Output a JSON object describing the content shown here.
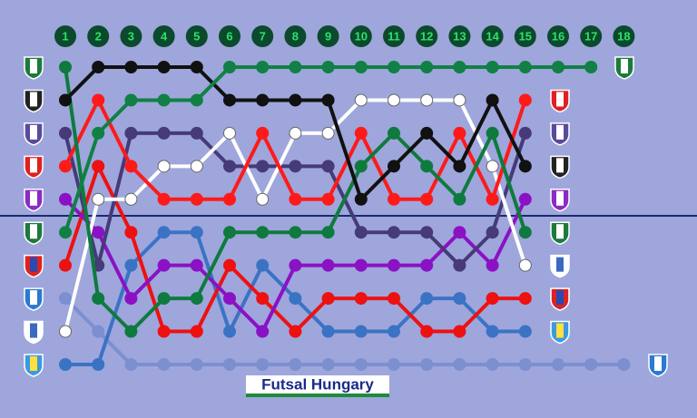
{
  "chart_data": {
    "type": "line",
    "x": [
      1,
      2,
      3,
      4,
      5,
      6,
      7,
      8,
      9,
      10,
      11,
      12,
      13,
      14,
      15,
      16,
      17,
      18
    ],
    "ylim": [
      1,
      10
    ],
    "y_inverted": true,
    "divider": 5.5,
    "logo": "Futsal Hungary",
    "series": [
      {
        "color": "#7c8fd0",
        "marker_fill": "#7c8fd0",
        "values": [
          8,
          9,
          10,
          10,
          10,
          10,
          10,
          10,
          10,
          10,
          10,
          10,
          10,
          10,
          10,
          10,
          10,
          10
        ]
      },
      {
        "color": "#3b73c4",
        "marker_fill": "#3b73c4",
        "values": [
          10,
          10,
          7,
          6,
          6,
          9,
          7,
          8,
          9,
          9,
          9,
          8,
          8,
          9,
          9,
          null,
          null,
          null
        ]
      },
      {
        "color": "#ee1111",
        "marker_fill": "#ee1111",
        "values": [
          7,
          4,
          6,
          9,
          9,
          7,
          8,
          9,
          8,
          8,
          8,
          9,
          9,
          8,
          8,
          null,
          null,
          null
        ]
      },
      {
        "color": "#8a12c4",
        "marker_fill": "#8a12c4",
        "values": [
          5,
          6,
          8,
          7,
          7,
          8,
          9,
          7,
          7,
          7,
          7,
          7,
          6,
          7,
          5,
          null,
          null,
          null
        ]
      },
      {
        "color": "#463a78",
        "marker_fill": "#463a78",
        "values": [
          3,
          7,
          3,
          3,
          3,
          4,
          4,
          4,
          4,
          6,
          6,
          6,
          7,
          6,
          3,
          null,
          null,
          null
        ]
      },
      {
        "color": "#ffffff",
        "marker_fill": "#ffffff",
        "values": [
          9,
          5,
          5,
          4,
          4,
          3,
          5,
          3,
          3,
          2,
          2,
          2,
          2,
          4,
          7,
          null,
          null,
          null
        ]
      },
      {
        "color": "#ff1a1a",
        "marker_fill": "#ff1a1a",
        "values": [
          4,
          2,
          4,
          5,
          5,
          5,
          3,
          5,
          5,
          3,
          5,
          5,
          3,
          5,
          2,
          null,
          null,
          null
        ]
      },
      {
        "color": "#0f7a3e",
        "marker_fill": "#0f7a3e",
        "values": [
          1,
          8,
          9,
          8,
          8,
          6,
          6,
          6,
          6,
          4,
          3,
          4,
          5,
          3,
          6,
          null,
          null,
          null
        ]
      },
      {
        "color": "#111111",
        "marker_fill": "#111111",
        "values": [
          2,
          1,
          1,
          1,
          1,
          2,
          2,
          2,
          2,
          5,
          4,
          3,
          4,
          2,
          4,
          null,
          null,
          null
        ]
      },
      {
        "color": "#118044",
        "marker_fill": "#118044",
        "values": [
          6,
          3,
          2,
          2,
          2,
          1,
          1,
          1,
          1,
          1,
          1,
          1,
          1,
          1,
          1,
          1,
          1,
          null
        ]
      }
    ]
  }
}
